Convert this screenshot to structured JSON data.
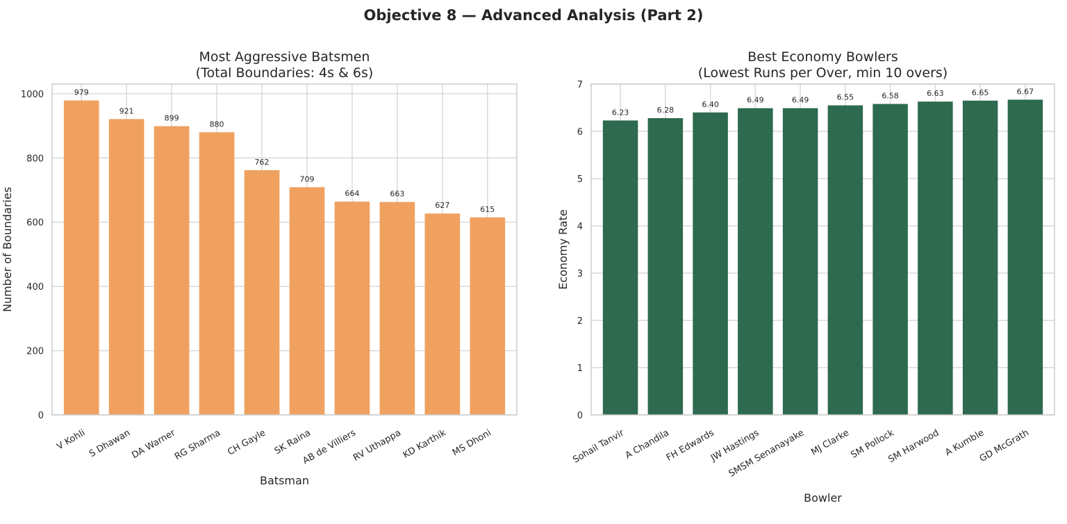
{
  "suptitle": "Objective 8 — Advanced Analysis (Part 2)",
  "colors": {
    "batsmen_bar": "#F0A160",
    "bowlers_bar": "#2D6A4F",
    "grid": "#d9d9d9",
    "frame": "#cccccc"
  },
  "chart_data": [
    {
      "type": "bar",
      "title_line1": "Most Aggressive Batsmen",
      "title_line2": "(Total Boundaries: 4s & 6s)",
      "xlabel": "Batsman",
      "ylabel": "Number of Boundaries",
      "ylim": [
        0,
        1030
      ],
      "yticks": [
        0,
        200,
        400,
        600,
        800,
        1000
      ],
      "grid": true,
      "categories": [
        "V Kohli",
        "S Dhawan",
        "DA Warner",
        "RG Sharma",
        "CH Gayle",
        "SK Raina",
        "AB de Villiers",
        "RV Uthappa",
        "KD Karthik",
        "MS Dhoni"
      ],
      "values": [
        979,
        921,
        899,
        880,
        762,
        709,
        664,
        663,
        627,
        615
      ],
      "value_labels": [
        "979",
        "921",
        "899",
        "880",
        "762",
        "709",
        "664",
        "663",
        "627",
        "615"
      ]
    },
    {
      "type": "bar",
      "title_line1": "Best Economy Bowlers",
      "title_line2": "(Lowest Runs per Over, min 10 overs)",
      "xlabel": "Bowler",
      "ylabel": "Economy Rate",
      "ylim": [
        0,
        7
      ],
      "yticks": [
        0,
        1,
        2,
        3,
        4,
        5,
        6,
        7
      ],
      "grid": true,
      "categories": [
        "Sohail Tanvir",
        "A Chandila",
        "FH Edwards",
        "JW Hastings",
        "SMSM Senanayake",
        "MJ Clarke",
        "SM Pollock",
        "SM Harwood",
        "A Kumble",
        "GD McGrath"
      ],
      "values": [
        6.23,
        6.28,
        6.4,
        6.49,
        6.49,
        6.55,
        6.58,
        6.63,
        6.65,
        6.67
      ],
      "value_labels": [
        "6.23",
        "6.28",
        "6.40",
        "6.49",
        "6.49",
        "6.55",
        "6.58",
        "6.63",
        "6.65",
        "6.67"
      ]
    }
  ]
}
